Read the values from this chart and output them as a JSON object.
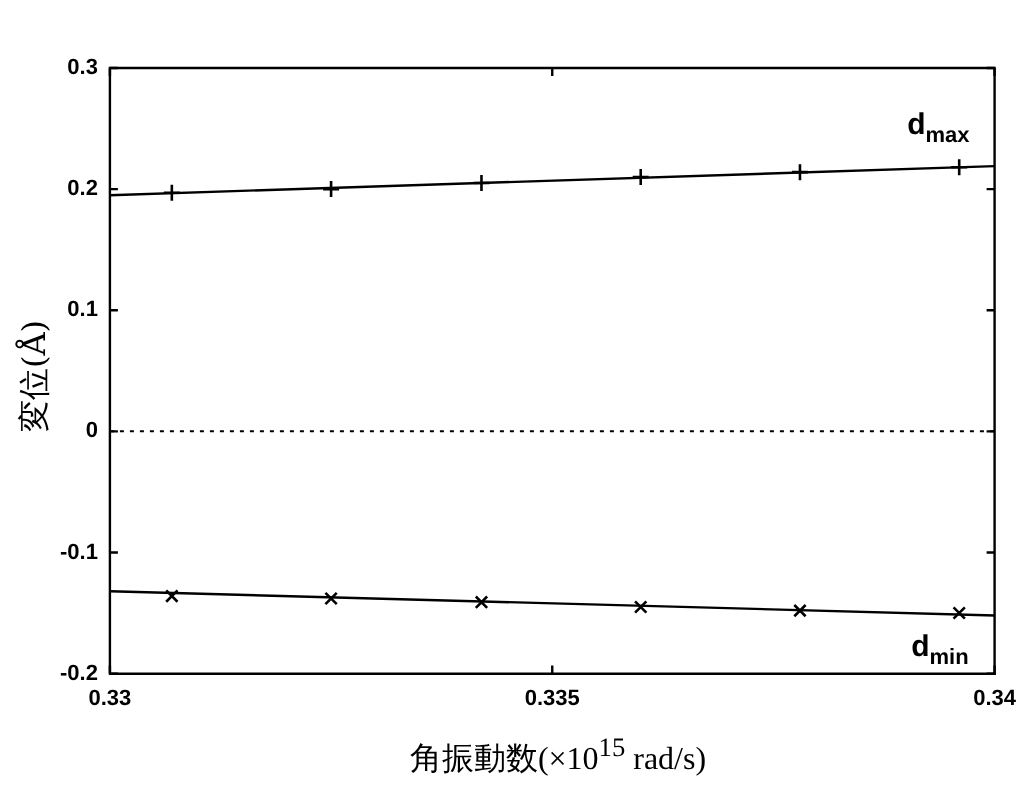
{
  "chart_data": {
    "type": "scatter",
    "xlabel": "角振動数(×10$^{15}$ rad/s)",
    "ylabel": "変位(Å)",
    "xlim": [
      0.33,
      0.34
    ],
    "xticks": [
      0.33,
      0.335,
      0.34
    ],
    "ylim": [
      -0.2,
      0.3
    ],
    "yticks": [
      -0.2,
      -0.1,
      0,
      0.1,
      0.2,
      0.3
    ],
    "grid": false,
    "series": [
      {
        "name": "d$_{max}$",
        "color": "#000000",
        "marker": "plus",
        "x": [
          0.3307,
          0.3325,
          0.3342,
          0.336,
          0.3378,
          0.3396
        ],
        "values": [
          0.197,
          0.2,
          0.205,
          0.21,
          0.214,
          0.218
        ]
      },
      {
        "name": "d$_{min}$",
        "color": "#000000",
        "marker": "cross",
        "x": [
          0.3307,
          0.3325,
          0.3342,
          0.336,
          0.3378,
          0.3396
        ],
        "values": [
          -0.136,
          -0.138,
          -0.141,
          -0.145,
          -0.148,
          -0.15
        ]
      },
      {
        "type": "line",
        "color": "#000000",
        "line_style": "solid",
        "x": [
          0.33,
          0.34
        ],
        "values": [
          0.195,
          0.219
        ]
      },
      {
        "type": "line",
        "color": "#000000",
        "line_style": "solid",
        "x": [
          0.33,
          0.34
        ],
        "values": [
          -0.132,
          -0.152
        ]
      }
    ],
    "ref_lines": [
      {
        "axis": "y",
        "value": 0,
        "line_style": "dotted",
        "color": "#000000"
      }
    ]
  }
}
